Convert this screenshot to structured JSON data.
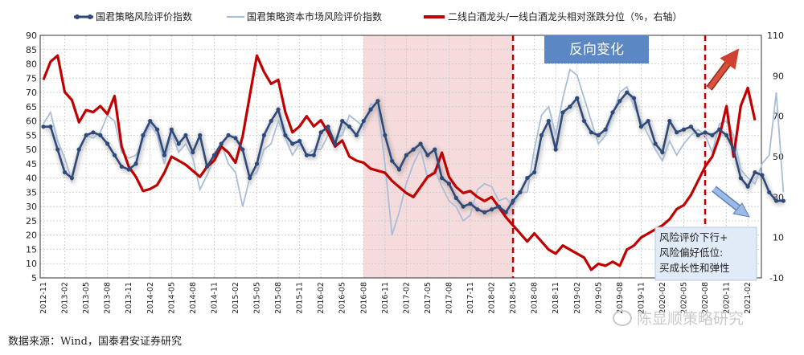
{
  "chart_data": {
    "type": "line",
    "legend": {
      "position": "top",
      "items": [
        "国君策略风险评价指数",
        "国君策略资本市场风险评价指数",
        "二线白酒龙头/一线白酒龙头相对涨跌分位（%，右轴）"
      ]
    },
    "left_axis": {
      "min": 5,
      "max": 90,
      "ticks": [
        "5",
        "10",
        "15",
        "20",
        "25",
        "30",
        "35",
        "40",
        "45",
        "50",
        "55",
        "60",
        "65",
        "70",
        "75",
        "80",
        "85",
        "90"
      ]
    },
    "right_axis": {
      "min": -10,
      "max": 110,
      "ticks": [
        "-10",
        "10",
        "30",
        "50",
        "70",
        "90",
        "110"
      ]
    },
    "x_tick_labels": [
      "2012-11",
      "2013-02",
      "2013-05",
      "2013-08",
      "2013-11",
      "2014-02",
      "2014-05",
      "2014-08",
      "2014-11",
      "2015-02",
      "2015-05",
      "2015-08",
      "2015-11",
      "2016-02",
      "2016-05",
      "2016-08",
      "2016-11",
      "2017-02",
      "2017-05",
      "2017-08",
      "2017-11",
      "2018-02",
      "2018-05",
      "2018-08",
      "2018-11",
      "2019-02",
      "2019-05",
      "2019-08",
      "2019-11",
      "2020-02",
      "2020-05",
      "2020-08",
      "2020-11",
      "2021-02"
    ],
    "grid": true,
    "shaded_range": {
      "from": "2016-08",
      "to": "2018-05"
    },
    "vertical_markers": [
      "2018-05",
      "2020-08"
    ],
    "series": [
      {
        "name": "国君策略风险评价指数",
        "axis": "left",
        "color": "#2f4a7a",
        "values": [
          58,
          58,
          50,
          42,
          40,
          50,
          55,
          56,
          55,
          52,
          48,
          44,
          43,
          45,
          55,
          60,
          57,
          48,
          57,
          52,
          55,
          49,
          55,
          44,
          48,
          52,
          55,
          54,
          50,
          40,
          45,
          55,
          60,
          64,
          55,
          52,
          53,
          48,
          48,
          56,
          58,
          52,
          60,
          58,
          55,
          60,
          64,
          67,
          55,
          46,
          43,
          48,
          50,
          52,
          48,
          50,
          40,
          38,
          33,
          30,
          31,
          29,
          28,
          29,
          30,
          28,
          32,
          35,
          40,
          42,
          55,
          60,
          50,
          63,
          65,
          68,
          60,
          56,
          55,
          57,
          63,
          67,
          70,
          68,
          58,
          60,
          52,
          49,
          60,
          56,
          57,
          58,
          55,
          56,
          55,
          57,
          55,
          50,
          40,
          37,
          42,
          41,
          35,
          32,
          32
        ]
      },
      {
        "name": "国君策略资本市场风险评价指数",
        "axis": "left",
        "color": "#a9bdd8",
        "values": [
          59,
          63,
          53,
          47,
          39,
          49,
          55,
          54,
          56,
          62,
          60,
          49,
          47,
          48,
          53,
          59,
          55,
          45,
          56,
          49,
          52,
          47,
          36,
          41,
          47,
          52,
          45,
          42,
          30,
          40,
          42,
          50,
          52,
          60,
          54,
          48,
          52,
          48,
          50,
          50,
          55,
          54,
          55,
          62,
          60,
          58,
          66,
          65,
          45,
          20,
          28,
          38,
          45,
          50,
          40,
          43,
          37,
          32,
          30,
          25,
          27,
          36,
          38,
          37,
          32,
          33,
          30,
          35,
          35,
          50,
          62,
          65,
          55,
          68,
          78,
          76,
          68,
          60,
          52,
          55,
          62,
          70,
          72,
          65,
          60,
          55,
          50,
          46,
          53,
          48,
          52,
          55,
          57,
          55,
          49,
          59,
          60,
          55,
          43,
          40,
          38,
          45,
          48,
          70,
          35
        ]
      },
      {
        "name": "二线白酒龙头/一线白酒龙头相对涨跌分位（%，右轴）",
        "axis": "right",
        "color": "#c00000",
        "values": [
          88,
          97,
          100,
          82,
          78,
          67,
          73,
          72,
          75,
          71,
          80,
          55,
          45,
          40,
          33,
          34,
          36,
          42,
          50,
          48,
          46,
          43,
          40,
          45,
          48,
          55,
          52,
          47,
          60,
          80,
          100,
          92,
          86,
          88,
          72,
          62,
          65,
          70,
          65,
          68,
          62,
          55,
          58,
          50,
          48,
          47,
          44,
          43,
          42,
          38,
          35,
          32,
          30,
          35,
          40,
          42,
          52,
          40,
          35,
          32,
          33,
          30,
          28,
          30,
          25,
          20,
          16,
          12,
          8,
          12,
          8,
          4,
          2,
          6,
          4,
          2,
          0,
          -6,
          -3,
          -4,
          -2,
          -4,
          4,
          6,
          10,
          12,
          14,
          16,
          19,
          24,
          26,
          31,
          38,
          45,
          50,
          60,
          75,
          50,
          75,
          84,
          68
        ]
      }
    ],
    "annotations": {
      "box_title": "反向变化",
      "box_note": [
        "风险评价下行+",
        "风险偏好低位:",
        "买成长性和弹性"
      ]
    }
  },
  "source_note": "数据来源：Wind，国泰君安证券研究",
  "watermark": "陈显顺策略研究"
}
